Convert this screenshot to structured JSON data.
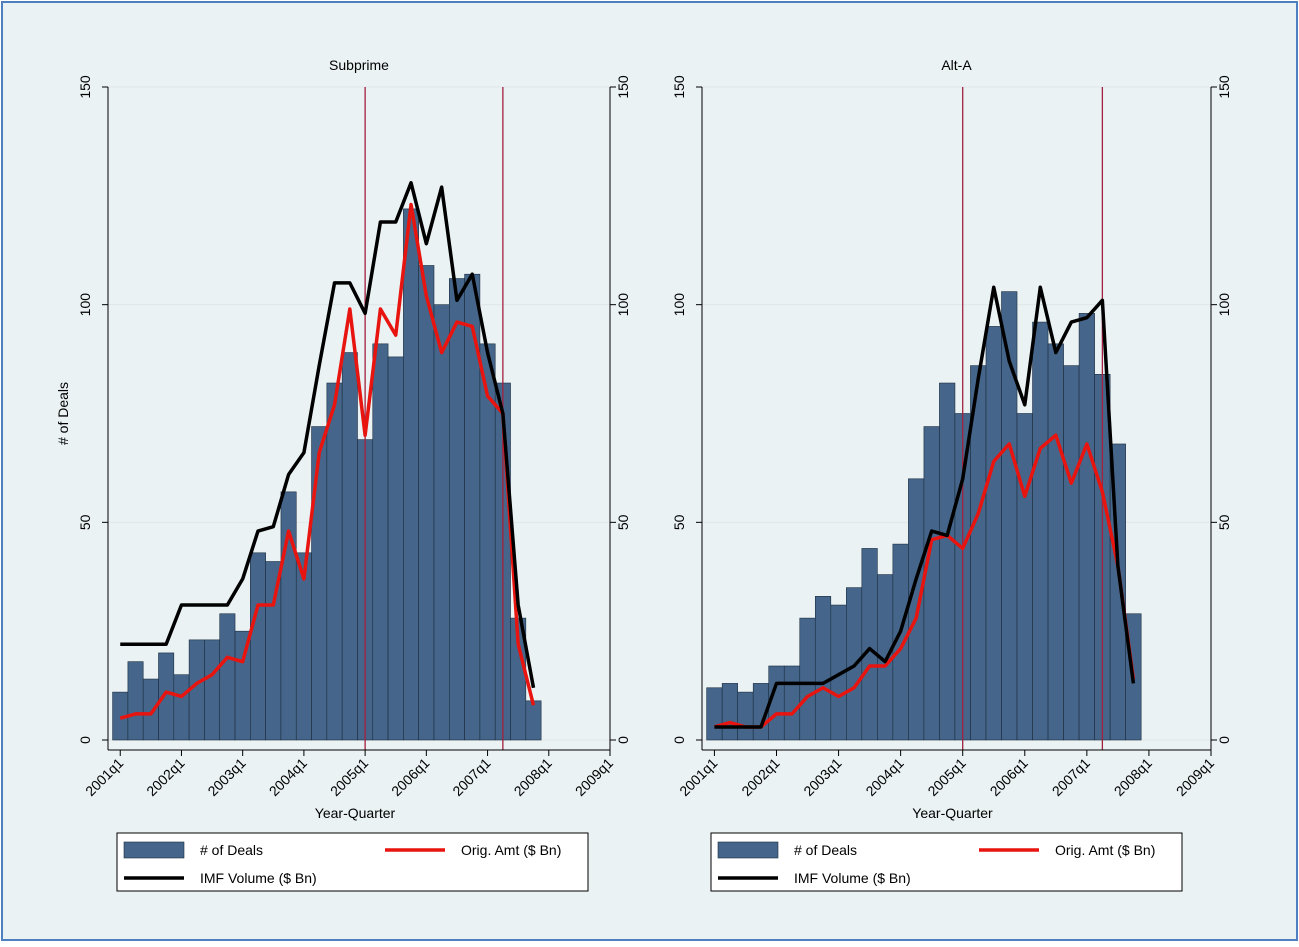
{
  "chart_data": [
    {
      "type": "combo",
      "title": "Subprime",
      "xlabel": "Year-Quarter",
      "ylabel": "# of Deals",
      "x": [
        2001,
        2001.25,
        2001.5,
        2001.75,
        2002,
        2002.25,
        2002.5,
        2002.75,
        2003,
        2003.25,
        2003.5,
        2003.75,
        2004,
        2004.25,
        2004.5,
        2004.75,
        2005,
        2005.25,
        2005.5,
        2005.75,
        2006,
        2006.25,
        2006.5,
        2006.75,
        2007,
        2007.25,
        2007.5,
        2007.75
      ],
      "xlim": [
        2000.8,
        2009
      ],
      "xticks": [
        {
          "value": 2001,
          "label": "2001q1"
        },
        {
          "value": 2002,
          "label": "2002q1"
        },
        {
          "value": 2003,
          "label": "2003q1"
        },
        {
          "value": 2004,
          "label": "2004q1"
        },
        {
          "value": 2005,
          "label": "2005q1"
        },
        {
          "value": 2006,
          "label": "2006q1"
        },
        {
          "value": 2007,
          "label": "2007q1"
        },
        {
          "value": 2008,
          "label": "2008q1"
        },
        {
          "value": 2009,
          "label": "2009q1"
        }
      ],
      "ylim": [
        0,
        150
      ],
      "yticks": [
        0,
        50,
        100,
        150
      ],
      "y2lim": [
        0,
        150
      ],
      "y2ticks": [
        0,
        50,
        100,
        150
      ],
      "grid": true,
      "legend": "bottom",
      "vlines": [
        2005,
        2007.25
      ],
      "vline_color": "#a3203f",
      "series": [
        {
          "name": "# of Deals",
          "style": "bar",
          "color": "#45668a",
          "values": [
            11,
            18,
            14,
            20,
            15,
            23,
            23,
            29,
            25,
            43,
            41,
            57,
            43,
            72,
            82,
            89,
            69,
            91,
            88,
            122,
            109,
            100,
            106,
            107,
            91,
            82,
            28,
            9
          ]
        },
        {
          "name": "Orig. Amt ($ Bn)",
          "style": "line",
          "color": "#e8140f",
          "values": [
            5,
            6,
            6,
            11,
            10,
            13,
            15,
            19,
            18,
            31,
            31,
            48,
            37,
            66,
            77,
            99,
            70,
            99,
            93,
            123,
            102,
            89,
            96,
            95,
            79,
            75,
            22,
            8
          ]
        },
        {
          "name": "IMF Volume ($ Bn)",
          "style": "line",
          "color": "#000000",
          "values": [
            22,
            22,
            22,
            22,
            31,
            31,
            31,
            31,
            37,
            48,
            49,
            61,
            66,
            86,
            105,
            105,
            98,
            119,
            119,
            128,
            114,
            127,
            101,
            107,
            89,
            75,
            31,
            12
          ]
        }
      ]
    },
    {
      "type": "combo",
      "title": "Alt-A",
      "xlabel": "Year-Quarter",
      "x": [
        2001,
        2001.25,
        2001.5,
        2001.75,
        2002,
        2002.25,
        2002.5,
        2002.75,
        2003,
        2003.25,
        2003.5,
        2003.75,
        2004,
        2004.25,
        2004.5,
        2004.75,
        2005,
        2005.25,
        2005.5,
        2005.75,
        2006,
        2006.25,
        2006.5,
        2006.75,
        2007,
        2007.25,
        2007.5,
        2007.75
      ],
      "xlim": [
        2000.8,
        2009
      ],
      "xticks": [
        {
          "value": 2001,
          "label": "2001q1"
        },
        {
          "value": 2002,
          "label": "2002q1"
        },
        {
          "value": 2003,
          "label": "2003q1"
        },
        {
          "value": 2004,
          "label": "2004q1"
        },
        {
          "value": 2005,
          "label": "2005q1"
        },
        {
          "value": 2006,
          "label": "2006q1"
        },
        {
          "value": 2007,
          "label": "2007q1"
        },
        {
          "value": 2008,
          "label": "2008q1"
        },
        {
          "value": 2009,
          "label": "2009q1"
        }
      ],
      "ylim": [
        0,
        150
      ],
      "yticks": [
        0,
        50,
        100,
        150
      ],
      "y2lim": [
        0,
        150
      ],
      "y2ticks": [
        0,
        50,
        100,
        150
      ],
      "grid": true,
      "legend": "bottom",
      "vlines": [
        2005,
        2007.25
      ],
      "vline_color": "#a3203f",
      "series": [
        {
          "name": "# of Deals",
          "style": "bar",
          "color": "#45668a",
          "values": [
            12,
            13,
            11,
            13,
            17,
            17,
            28,
            33,
            31,
            35,
            44,
            38,
            45,
            60,
            72,
            82,
            75,
            86,
            95,
            103,
            75,
            96,
            91,
            86,
            98,
            84,
            68,
            29
          ]
        },
        {
          "name": "Orig. Amt ($ Bn)",
          "style": "line",
          "color": "#e8140f",
          "values": [
            3,
            4,
            3,
            3,
            6,
            6,
            10,
            12,
            10,
            12,
            17,
            17,
            21,
            28,
            46,
            47,
            44,
            52,
            64,
            68,
            56,
            67,
            70,
            59,
            68,
            57,
            40,
            14
          ]
        },
        {
          "name": "IMF Volume ($ Bn)",
          "style": "line",
          "color": "#000000",
          "values": [
            3,
            3,
            3,
            3,
            13,
            13,
            13,
            13,
            15,
            17,
            21,
            18,
            25,
            37,
            48,
            47,
            60,
            83,
            104,
            87,
            77,
            104,
            89,
            96,
            97,
            101,
            40,
            13
          ]
        }
      ]
    }
  ]
}
